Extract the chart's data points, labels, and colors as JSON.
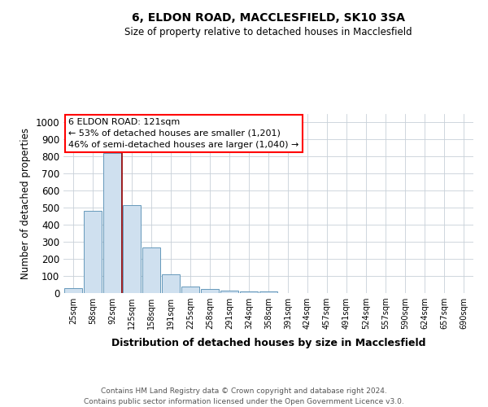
{
  "title": "6, ELDON ROAD, MACCLESFIELD, SK10 3SA",
  "subtitle": "Size of property relative to detached houses in Macclesfield",
  "xlabel": "Distribution of detached houses by size in Macclesfield",
  "ylabel": "Number of detached properties",
  "footer_line1": "Contains HM Land Registry data © Crown copyright and database right 2024.",
  "footer_line2": "Contains public sector information licensed under the Open Government Licence v3.0.",
  "annotation_line1": "6 ELDON ROAD: 121sqm",
  "annotation_line2": "← 53% of detached houses are smaller (1,201)",
  "annotation_line3": "46% of semi-detached houses are larger (1,040) →",
  "categories": [
    "25sqm",
    "58sqm",
    "92sqm",
    "125sqm",
    "158sqm",
    "191sqm",
    "225sqm",
    "258sqm",
    "291sqm",
    "324sqm",
    "358sqm",
    "391sqm",
    "424sqm",
    "457sqm",
    "491sqm",
    "524sqm",
    "557sqm",
    "590sqm",
    "624sqm",
    "657sqm",
    "690sqm"
  ],
  "values": [
    30,
    480,
    820,
    515,
    265,
    110,
    38,
    22,
    12,
    8,
    8,
    0,
    0,
    0,
    0,
    0,
    0,
    0,
    0,
    0,
    0
  ],
  "bar_color": "#cfe0ef",
  "bar_edge_color": "#6699bb",
  "red_line_index": 3,
  "ylim": [
    0,
    1050
  ],
  "yticks": [
    0,
    100,
    200,
    300,
    400,
    500,
    600,
    700,
    800,
    900,
    1000
  ],
  "background_color": "#ffffff",
  "grid_color": "#c8d0d8"
}
